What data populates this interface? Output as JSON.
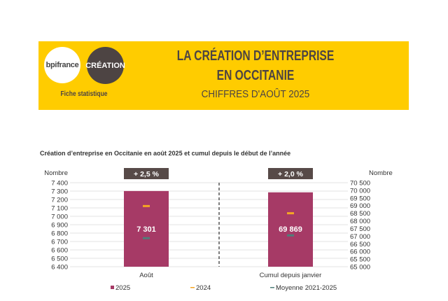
{
  "header": {
    "logo_left": "bpifrance",
    "logo_right": "CRÉATION",
    "subtitle": "Fiche statistique",
    "title_line1": "LA CRÉATION D’ENTREPRISE",
    "title_line2": "EN OCCITANIE",
    "title_line3": "CHIFFRES D'AOÛT 2025"
  },
  "chart_data": {
    "type": "bar",
    "title": "Création d’entreprise en Occitanie en août 2025 et cumul depuis le début de l’année",
    "categories": [
      "Août",
      "Cumul depuis janvier"
    ],
    "ylabel_left": "Nombre",
    "ylabel_right": "Nombre",
    "ylim_left": [
      6400,
      7400
    ],
    "ylim_right": [
      65000,
      70500
    ],
    "yticks_left": [
      "7 400",
      "7 300",
      "7 200",
      "7 100",
      "7 000",
      "6 900",
      "6 800",
      "6 700",
      "6 600",
      "6 500",
      "6 400"
    ],
    "yticks_right": [
      "70 500",
      "70 000",
      "69 500",
      "69 000",
      "68 500",
      "68 000",
      "67 500",
      "67 000",
      "66 500",
      "66 000",
      "65 500",
      "65 000"
    ],
    "series": [
      {
        "name": "2025",
        "type": "bar",
        "values": [
          7301,
          69869
        ],
        "labels": [
          "7 301",
          "69 869"
        ],
        "color": "#A63A66"
      },
      {
        "name": "2024",
        "type": "marker",
        "values": [
          7122,
          68500
        ],
        "color": "#F5A623"
      },
      {
        "name": "Moyenne 2021-2025",
        "type": "marker",
        "values": [
          6740,
          67050
        ],
        "color": "#4F7F7A"
      }
    ],
    "badges": [
      "+ 2,5 %",
      "+ 2,0 %"
    ],
    "legend": [
      "2025",
      "2024",
      "Moyenne 2021-2025"
    ],
    "legend_position": "bottom",
    "grid": true
  }
}
